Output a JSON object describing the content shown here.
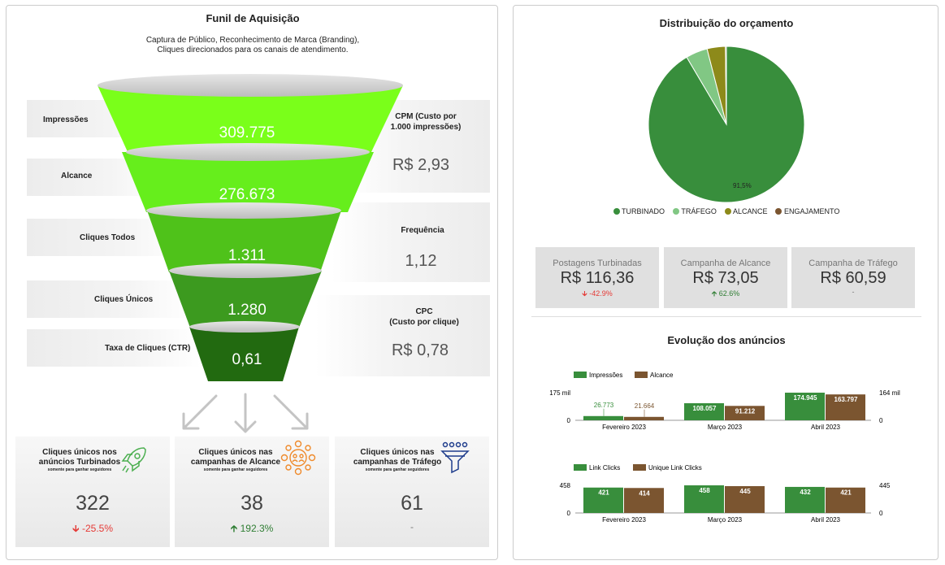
{
  "funnel": {
    "title": "Funil de Aquisição",
    "subtitle_line1": "Captura de Público, Reconhecimento de Marca (Branding),",
    "subtitle_line2": "Cliques direcionados para os canais de atendimento.",
    "stages": [
      {
        "label": "Impressões",
        "value": "309.775",
        "color": "#7aff1a"
      },
      {
        "label": "Alcance",
        "value": "276.673",
        "color": "#66ee1c"
      },
      {
        "label": "Cliques Todos",
        "value": "1.311",
        "color": "#4fc21a"
      },
      {
        "label": "Cliques Únicos",
        "value": "1.280",
        "color": "#3c9a1f"
      },
      {
        "label": "Taxa de Cliques (CTR)",
        "value": "0,61",
        "color": "#226a10"
      }
    ],
    "metrics": [
      {
        "label_line1": "CPM (Custo por",
        "label_line2": "1.000 impressões)",
        "value": "R$ 2,93"
      },
      {
        "label_line1": "Frequência",
        "label_line2": "",
        "value": "1,12"
      },
      {
        "label_line1": "CPC",
        "label_line2": "(Custo por clique)",
        "value": "R$ 0,78"
      }
    ],
    "cards": [
      {
        "title_line1": "Cliques únicos nos",
        "title_line2": "anúncios Turbinados",
        "small": "somente para ganhar seguidores",
        "value": "322",
        "delta": "-25.5%",
        "delta_dir": "down",
        "icon": "rocket-icon"
      },
      {
        "title_line1": "Cliques únicos nas",
        "title_line2": "campanhas de Alcance",
        "small": "somente para ganhar seguidores",
        "value": "38",
        "delta": "192.3%",
        "delta_dir": "up",
        "icon": "audience-network-icon"
      },
      {
        "title_line1": "Cliques únicos nas",
        "title_line2": "campanhas de Tráfego",
        "small": "somente para ganhar seguidores",
        "value": "61",
        "delta": "-",
        "delta_dir": "none",
        "icon": "funnel-filter-icon"
      }
    ]
  },
  "budget": {
    "title": "Distribuição do orçamento",
    "slice_label": "91,5%",
    "legend": [
      "TURBINADO",
      "TRÁFEGO",
      "ALCANCE",
      "ENGAJAMENTO"
    ],
    "colors": {
      "TURBINADO": "#388e3c",
      "TRÁFEGO": "#81c784",
      "ALCANCE": "#8d8a1a",
      "ENGAJAMENTO": "#7b5530"
    }
  },
  "kpis": [
    {
      "label": "Postagens Turbinadas",
      "value": "R$ 116,36",
      "delta": "-42.9%",
      "delta_dir": "down"
    },
    {
      "label": "Campanha de Alcance",
      "value": "R$ 73,05",
      "delta": "62.6%",
      "delta_dir": "up"
    },
    {
      "label": "Campanha de Tráfego",
      "value": "R$ 60,59",
      "delta": "-",
      "delta_dir": "none"
    }
  ],
  "evolution": {
    "title": "Evolução dos anúncios"
  },
  "colors": {
    "green": "#388e3c",
    "brown": "#7b5530",
    "down": "#e53935",
    "up": "#2e7d32"
  },
  "chart_data": [
    {
      "type": "pie",
      "title": "Distribuição do orçamento",
      "categories": [
        "TURBINADO",
        "TRÁFEGO",
        "ALCANCE",
        "ENGAJAMENTO"
      ],
      "values": [
        91.5,
        4.5,
        3.8,
        0.2
      ]
    },
    {
      "type": "bar",
      "categories": [
        "Fevereiro 2023",
        "Março 2023",
        "Abril 2023"
      ],
      "series": [
        {
          "name": "Impressões",
          "values": [
            26773,
            108057,
            174945
          ],
          "labels": [
            "26.773",
            "108.057",
            "174.945"
          ]
        },
        {
          "name": "Alcance",
          "values": [
            21664,
            91212,
            163797
          ],
          "labels": [
            "21.664",
            "91.212",
            "163.797"
          ]
        }
      ],
      "left_axis_ticks": [
        "175 mil",
        "0"
      ],
      "right_axis_ticks": [
        "164 mil",
        "0"
      ],
      "ylim": [
        0,
        175000
      ]
    },
    {
      "type": "bar",
      "categories": [
        "Fevereiro 2023",
        "Março 2023",
        "Abril 2023"
      ],
      "series": [
        {
          "name": "Link Clicks",
          "values": [
            421,
            458,
            432
          ],
          "labels": [
            "421",
            "458",
            "432"
          ]
        },
        {
          "name": "Unique Link Clicks",
          "values": [
            414,
            445,
            421
          ],
          "labels": [
            "414",
            "445",
            "421"
          ]
        }
      ],
      "left_axis_ticks": [
        "458",
        "0"
      ],
      "right_axis_ticks": [
        "445",
        "0"
      ],
      "ylim": [
        0,
        458
      ]
    }
  ]
}
